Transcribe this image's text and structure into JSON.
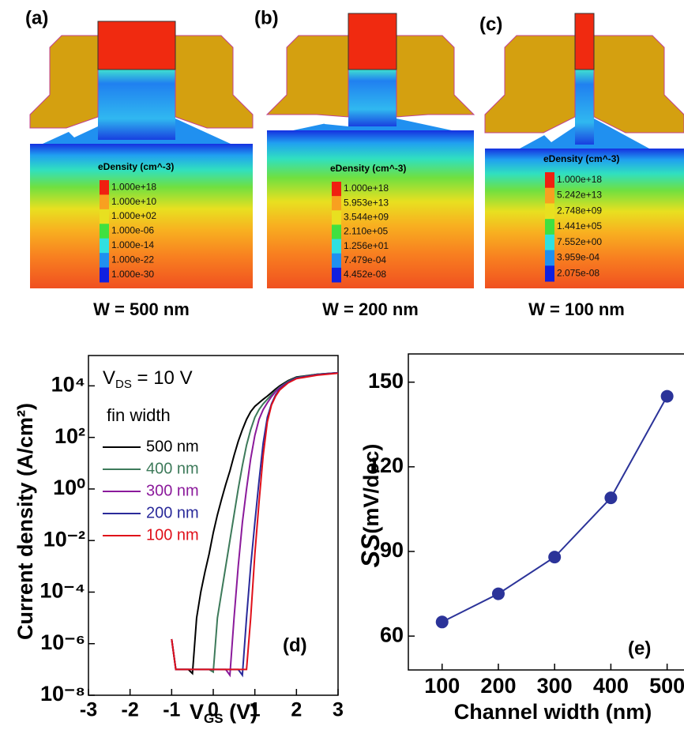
{
  "panels": [
    {
      "label": "(a)",
      "legend_title": "eDensity (cm^-3)",
      "colorbar_labels": [
        "1.000e+18",
        "1.000e+10",
        "1.000e+02",
        "1.000e-06",
        "1.000e-14",
        "1.000e-22",
        "1.000e-30"
      ],
      "caption": "W = 500 nm"
    },
    {
      "label": "(b)",
      "legend_title": "eDensity (cm^-3)",
      "colorbar_labels": [
        "1.000e+18",
        "5.953e+13",
        "3.544e+09",
        "2.110e+05",
        "1.256e+01",
        "7.479e-04",
        "4.452e-08"
      ],
      "caption": "W = 200 nm"
    },
    {
      "label": "(c)",
      "legend_title": "eDensity (cm^-3)",
      "colorbar_labels": [
        "1.000e+18",
        "5.242e+13",
        "2.748e+09",
        "1.441e+05",
        "7.552e+00",
        "3.959e-04",
        "2.075e-08"
      ],
      "caption": "W = 100 nm"
    }
  ],
  "chart_data": [
    {
      "type": "line",
      "panel_label": "(d)",
      "log_y": true,
      "annotation": {
        "main": "V",
        "sub": "DS",
        "rest": " = 10 V"
      },
      "legend_title": "fin width",
      "x_label": {
        "main": "V",
        "sub": "GS",
        "rest": " (V)"
      },
      "y_label": "Current density (A/cm²)",
      "xlim": [
        -3,
        3
      ],
      "xticks": [
        -3,
        -2,
        -1,
        0,
        1,
        2,
        3
      ],
      "ylim": [
        1e-08,
        150000
      ],
      "yticks": [
        {
          "value": 1e-08,
          "label": "10⁻⁸"
        },
        {
          "value": 1e-06,
          "label": "10⁻⁶"
        },
        {
          "value": 0.0001,
          "label": "10⁻⁴"
        },
        {
          "value": 0.01,
          "label": "10⁻²"
        },
        {
          "value": 1,
          "label": "10⁰"
        },
        {
          "value": 100,
          "label": "10²"
        },
        {
          "value": 10000,
          "label": "10⁴"
        }
      ],
      "x": [
        -1,
        -0.9,
        -0.8,
        -0.7,
        -0.6,
        -0.5,
        -0.4,
        -0.3,
        -0.2,
        -0.1,
        0,
        0.1,
        0.2,
        0.3,
        0.4,
        0.5,
        0.6,
        0.7,
        0.8,
        0.9,
        1,
        1.1,
        1.2,
        1.3,
        1.4,
        1.5,
        1.6,
        1.8,
        2,
        2.5,
        3
      ],
      "series": [
        {
          "name": "500 nm",
          "color": "#000000",
          "values": [
            1.5e-06,
            1e-07,
            1e-07,
            1e-07,
            1e-07,
            7e-08,
            1e-05,
            0.0001,
            0.0006,
            0.003,
            0.02,
            0.1,
            0.4,
            1.5,
            5,
            20,
            70,
            200,
            500,
            1000,
            1600,
            2200,
            3000,
            4000,
            5500,
            7500,
            10000,
            16000,
            22000,
            28000,
            32000
          ]
        },
        {
          "name": "400 nm",
          "color": "#3d7a5a",
          "values": [
            1.5e-06,
            1e-07,
            1e-07,
            1e-07,
            1e-07,
            1e-07,
            1e-07,
            1e-07,
            1e-07,
            1e-07,
            8e-08,
            1e-05,
            0.0001,
            0.001,
            0.01,
            0.1,
            1,
            8,
            50,
            200,
            600,
            1200,
            2000,
            3000,
            4500,
            6500,
            9000,
            15000,
            21000,
            28000,
            32000
          ]
        },
        {
          "name": "300 nm",
          "color": "#8b1a9b",
          "values": [
            1.5e-06,
            1e-07,
            1e-07,
            1e-07,
            1e-07,
            1e-07,
            1e-07,
            1e-07,
            1e-07,
            1e-07,
            1e-07,
            1e-07,
            1e-07,
            1e-07,
            6e-08,
            1e-05,
            0.001,
            0.05,
            1,
            15,
            120,
            500,
            1200,
            2200,
            3800,
            6000,
            8500,
            14000,
            20000,
            27000,
            32000
          ]
        },
        {
          "name": "200 nm",
          "color": "#2a2a9a",
          "values": [
            1.5e-06,
            1e-07,
            1e-07,
            1e-07,
            1e-07,
            1e-07,
            1e-07,
            1e-07,
            1e-07,
            1e-07,
            1e-07,
            1e-07,
            1e-07,
            1e-07,
            1e-07,
            1e-07,
            1e-07,
            6e-08,
            1e-05,
            0.001,
            0.05,
            2,
            60,
            600,
            2000,
            4500,
            7500,
            14000,
            20000,
            27000,
            32000
          ]
        },
        {
          "name": "100 nm",
          "color": "#e0101a",
          "values": [
            1.5e-06,
            1e-07,
            1e-07,
            1e-07,
            1e-07,
            1e-07,
            1e-07,
            1e-07,
            1e-07,
            1e-07,
            1e-07,
            1e-07,
            1e-07,
            1e-07,
            1e-07,
            1e-07,
            1e-07,
            1e-07,
            1e-07,
            1e-05,
            0.003,
            0.3,
            20,
            400,
            1800,
            4000,
            7000,
            13000,
            19000,
            26000,
            31000
          ]
        }
      ]
    },
    {
      "type": "line",
      "panel_label": "(e)",
      "markers": true,
      "x_label": "Channel width (nm)",
      "y_label": {
        "italic": "SS",
        "rest": "(mV/dec)"
      },
      "xlim": [
        40,
        530
      ],
      "xticks": [
        100,
        200,
        300,
        400,
        500
      ],
      "ylim": [
        48,
        160
      ],
      "yticks": [
        60,
        90,
        120,
        150
      ],
      "x": [
        100,
        200,
        300,
        400,
        500
      ],
      "series": [
        {
          "color": "#2b3399",
          "values": [
            65,
            75,
            88,
            109,
            145
          ]
        }
      ]
    }
  ]
}
